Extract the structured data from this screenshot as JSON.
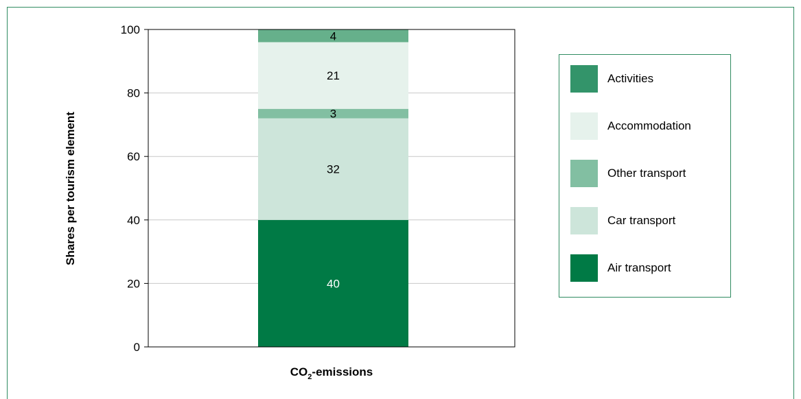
{
  "chart_data": {
    "type": "bar",
    "stacked": true,
    "categories": [
      "CO2-emissions"
    ],
    "xlabel": "CO2-emissions",
    "ylabel": "Shares per tourism element",
    "ylim": [
      0,
      100
    ],
    "yticks": [
      0,
      20,
      40,
      60,
      80,
      100
    ],
    "grid": true,
    "legend_position": "right",
    "series": [
      {
        "name": "Air transport",
        "values": [
          40
        ],
        "color": "#007a45",
        "label_color": "#ffffff"
      },
      {
        "name": "Car transport",
        "values": [
          32
        ],
        "color": "#cde5da",
        "label_color": "#000000"
      },
      {
        "name": "Other transport",
        "values": [
          3
        ],
        "color": "#82bfa2",
        "label_color": "#000000"
      },
      {
        "name": "Accommodation",
        "values": [
          21
        ],
        "color": "#e6f2ec",
        "label_color": "#000000"
      },
      {
        "name": "Activities",
        "values": [
          4
        ],
        "color": "#66b08b",
        "label_color": "#000000"
      }
    ]
  },
  "legend": {
    "items": [
      {
        "label": "Activities",
        "color": "#33946a"
      },
      {
        "label": "Accommodation",
        "color": "#e6f2ec"
      },
      {
        "label": "Other transport",
        "color": "#82bfa2"
      },
      {
        "label": "Car transport",
        "color": "#cde5da"
      },
      {
        "label": "Air transport",
        "color": "#007a45"
      }
    ]
  },
  "axis": {
    "xlabel_main": "CO",
    "xlabel_sub": "2",
    "xlabel_rest": "-emissions"
  },
  "colors": {
    "frame": "#2e8b60",
    "grid": "#c8c8c8"
  }
}
